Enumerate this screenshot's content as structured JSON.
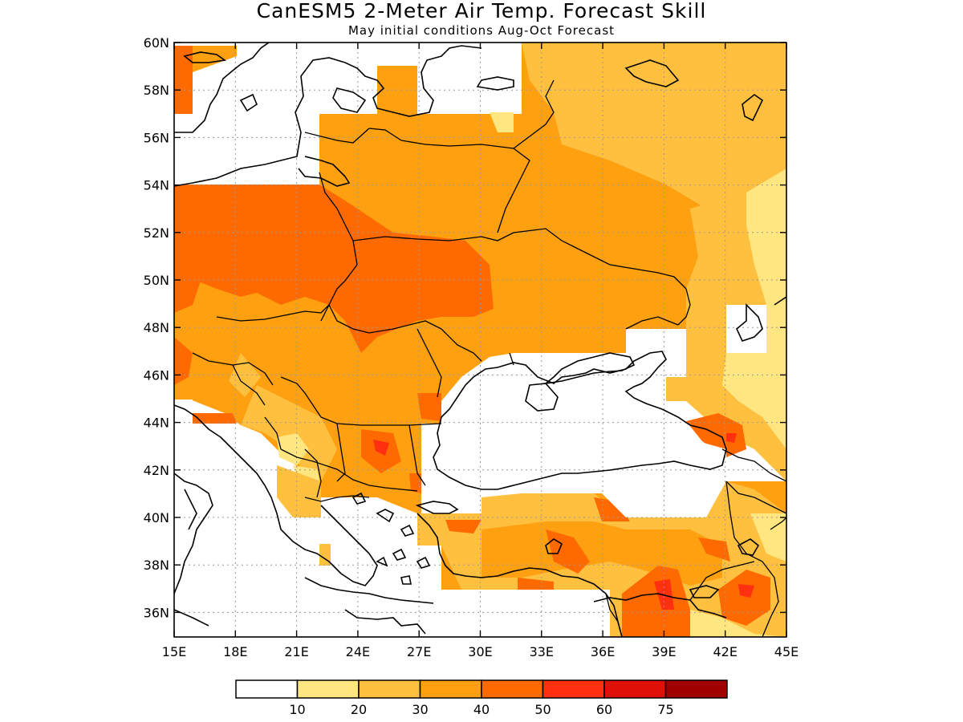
{
  "title": "CanESM5 2-Meter Air Temp. Forecast Skill",
  "subtitle": "May initial conditions  Aug-Oct Forecast",
  "map": {
    "lat_range": [
      35,
      60
    ],
    "lon_range": [
      15,
      45
    ],
    "lat_ticks": [
      "60N",
      "58N",
      "56N",
      "54N",
      "52N",
      "50N",
      "48N",
      "46N",
      "44N",
      "42N",
      "40N",
      "38N",
      "36N"
    ],
    "lon_ticks": [
      "15E",
      "18E",
      "21E",
      "24E",
      "27E",
      "30E",
      "33E",
      "36E",
      "39E",
      "42E",
      "45E"
    ],
    "grid_lines": "dotted",
    "region": "Eastern Europe / Black Sea"
  },
  "legend": {
    "labels": [
      "10",
      "20",
      "30",
      "40",
      "50",
      "60",
      "75"
    ],
    "colors": [
      "#ffffff",
      "#ffe680",
      "#ffc040",
      "#ffa010",
      "#ff6a00",
      "#ff3010",
      "#e01008",
      "#a00000"
    ],
    "placement": "bottom"
  },
  "colors": {
    "c20": "#ffe680",
    "c30": "#ffc040",
    "c40": "#ffa010",
    "c50": "#ff6a00",
    "c60": "#ff3010",
    "c75": "#e01008"
  }
}
